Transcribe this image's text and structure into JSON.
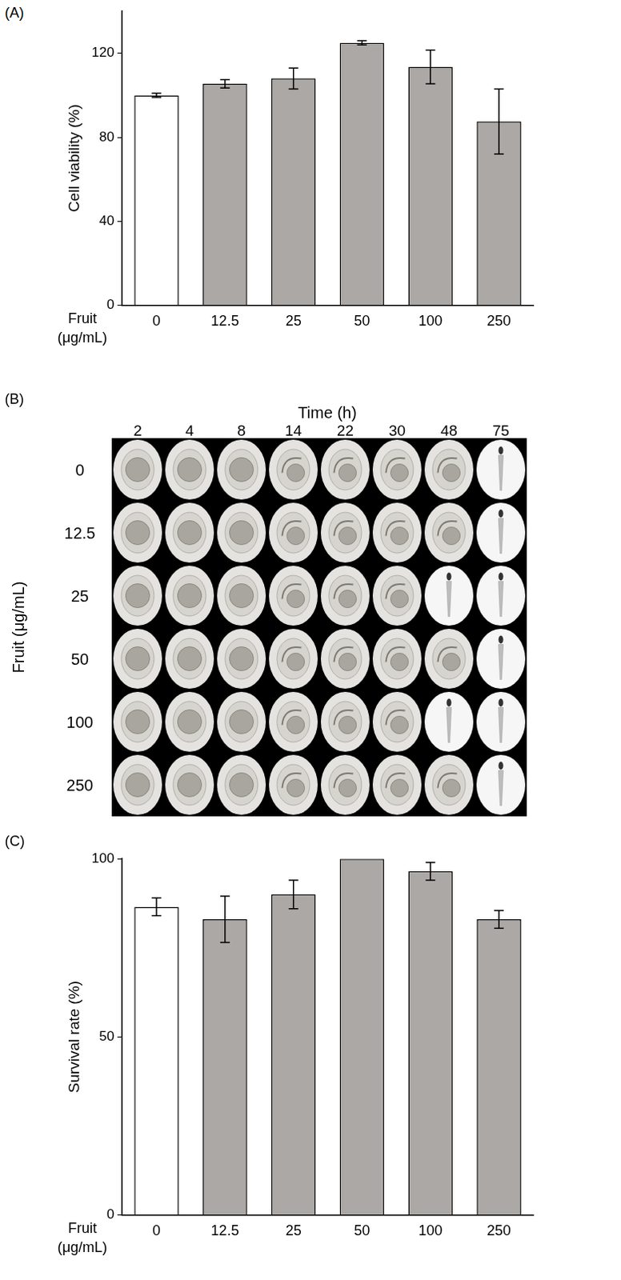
{
  "chart_data": [
    {
      "type": "bar",
      "title": "(A)",
      "x_label": "Fruit (μg/mL)",
      "y_label": "Cell viability (%)",
      "categories": [
        "0",
        "12.5",
        "25",
        "50",
        "100",
        "250"
      ],
      "values": [
        100,
        105.5,
        108,
        125,
        113.5,
        87.5
      ],
      "errors": [
        1,
        2,
        5,
        1,
        8,
        15.5
      ],
      "colors": [
        "#ffffff",
        "#aca8a5",
        "#aca8a5",
        "#aca8a5",
        "#aca8a5",
        "#aca8a5"
      ],
      "ylim": [
        0,
        140
      ],
      "yticks": [
        0,
        40,
        80,
        120
      ],
      "grid": false
    },
    {
      "type": "bar",
      "title": "(C)",
      "x_label": "Fruit (μg/mL)",
      "y_label": "Survival rate (%)",
      "categories": [
        "0",
        "12.5",
        "25",
        "50",
        "100",
        "250"
      ],
      "values": [
        86.5,
        83,
        90,
        100,
        96.5,
        83
      ],
      "errors": [
        2.5,
        6.5,
        4,
        0,
        2.5,
        2.5
      ],
      "colors": [
        "#ffffff",
        "#aca8a5",
        "#aca8a5",
        "#aca8a5",
        "#aca8a5",
        "#aca8a5"
      ],
      "ylim": [
        0,
        100
      ],
      "yticks": [
        0,
        50,
        100
      ],
      "grid": false
    }
  ],
  "image_panel": {
    "label": "(B)",
    "column_title": "Time (h)",
    "columns": [
      2,
      4,
      8,
      14,
      22,
      30,
      48,
      75
    ],
    "row_title": "Fruit (μg/mL)",
    "rows": [
      "0",
      "12.5",
      "25",
      "50",
      "100",
      "250"
    ]
  }
}
